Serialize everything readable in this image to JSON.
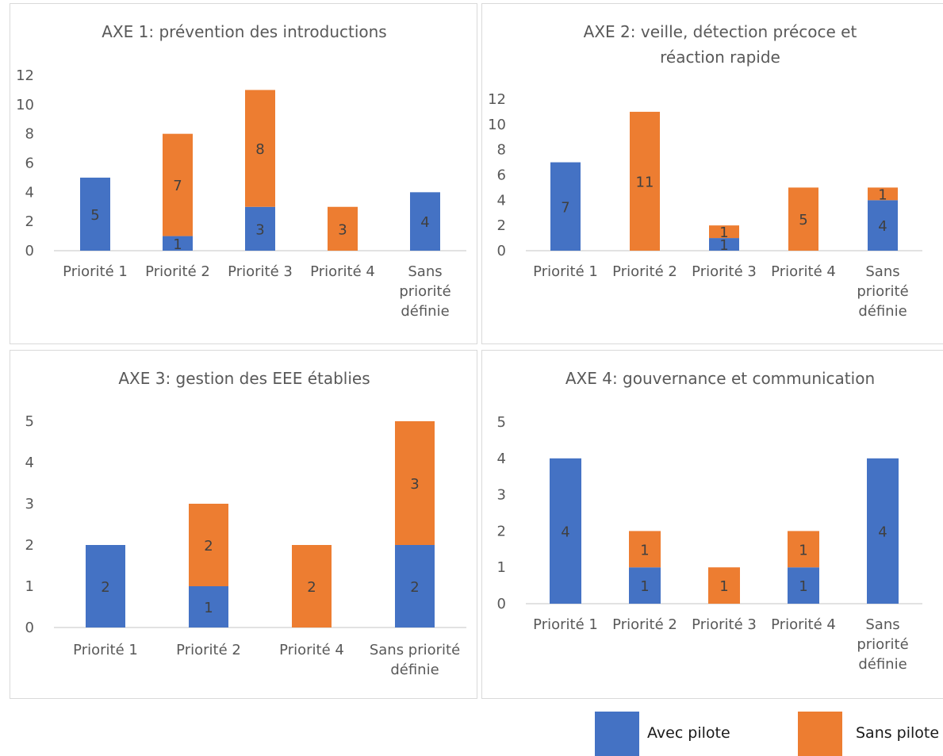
{
  "colors": {
    "avec": "#4472c4",
    "sans": "#ed7d31",
    "axis": "#d9d9d9",
    "text": "#595959",
    "title": "#595959",
    "label": "#404040"
  },
  "legend": {
    "avec_label": "Avec pilote",
    "sans_label": "Sans pilote"
  },
  "chart_data": [
    {
      "type": "bar",
      "stacked": true,
      "title_lines": [
        "AXE 1: prévention des introductions"
      ],
      "ylim": [
        0,
        12
      ],
      "yticks": [
        0,
        2,
        4,
        6,
        8,
        10,
        12
      ],
      "categories": [
        [
          "Priorité 1"
        ],
        [
          "Priorité 2"
        ],
        [
          "Priorité 3"
        ],
        [
          "Priorité 4"
        ],
        [
          "Sans",
          "priorité",
          "définie"
        ]
      ],
      "series": [
        {
          "name": "Avec pilote",
          "values": [
            5,
            1,
            3,
            0,
            4
          ]
        },
        {
          "name": "Sans pilote",
          "values": [
            0,
            7,
            8,
            3,
            0
          ]
        }
      ]
    },
    {
      "type": "bar",
      "stacked": true,
      "title_lines": [
        "AXE 2: veille, détection précoce et",
        "réaction rapide"
      ],
      "ylim": [
        0,
        12
      ],
      "yticks": [
        0,
        2,
        4,
        6,
        8,
        10,
        12
      ],
      "categories": [
        [
          "Priorité 1"
        ],
        [
          "Priorité 2"
        ],
        [
          "Priorité 3"
        ],
        [
          "Priorité 4"
        ],
        [
          "Sans",
          "priorité",
          "définie"
        ]
      ],
      "series": [
        {
          "name": "Avec pilote",
          "values": [
            7,
            0,
            1,
            0,
            4
          ]
        },
        {
          "name": "Sans pilote",
          "values": [
            0,
            11,
            1,
            5,
            1
          ]
        }
      ]
    },
    {
      "type": "bar",
      "stacked": true,
      "title_lines": [
        "AXE 3: gestion des EEE établies"
      ],
      "ylim": [
        0,
        5
      ],
      "yticks": [
        0,
        1,
        2,
        3,
        4,
        5
      ],
      "categories": [
        [
          "Priorité 1"
        ],
        [
          "Priorité 2"
        ],
        [
          "Priorité 4"
        ],
        [
          "Sans priorité",
          "définie"
        ]
      ],
      "series": [
        {
          "name": "Avec pilote",
          "values": [
            2,
            1,
            0,
            2
          ]
        },
        {
          "name": "Sans pilote",
          "values": [
            0,
            2,
            2,
            3
          ]
        }
      ]
    },
    {
      "type": "bar",
      "stacked": true,
      "title_lines": [
        "AXE 4: gouvernance et communication"
      ],
      "ylim": [
        0,
        5
      ],
      "yticks": [
        0,
        1,
        2,
        3,
        4,
        5
      ],
      "categories": [
        [
          "Priorité 1"
        ],
        [
          "Priorité 2"
        ],
        [
          "Priorité 3"
        ],
        [
          "Priorité 4"
        ],
        [
          "Sans",
          "priorité",
          "définie"
        ]
      ],
      "series": [
        {
          "name": "Avec pilote",
          "values": [
            4,
            1,
            0,
            1,
            4
          ]
        },
        {
          "name": "Sans pilote",
          "values": [
            0,
            1,
            1,
            1,
            0
          ]
        }
      ]
    }
  ]
}
